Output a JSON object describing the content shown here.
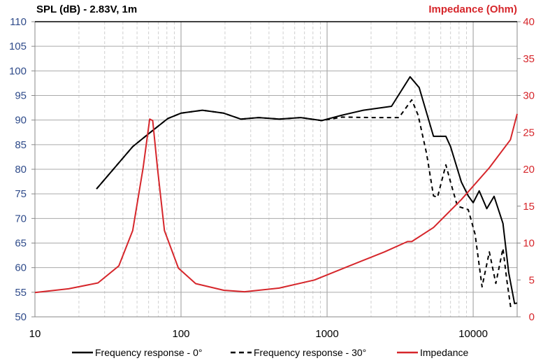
{
  "chart_data": {
    "type": "line",
    "title_left": "SPL (dB) - 2.83V, 1m",
    "title_right": "Impedance (Ohm)",
    "xscale": "log",
    "xlim": [
      10,
      20000
    ],
    "xticks": [
      10,
      100,
      1000,
      10000
    ],
    "xtick_labels": [
      "10",
      "100",
      "1000",
      "10000"
    ],
    "ylim": [
      50,
      110
    ],
    "yticks": [
      50,
      55,
      60,
      65,
      70,
      75,
      80,
      85,
      90,
      95,
      100,
      105,
      110
    ],
    "y2lim": [
      0,
      40
    ],
    "y2ticks": [
      0,
      5,
      10,
      15,
      20,
      25,
      30,
      35,
      40
    ],
    "grid": true,
    "legend_position": "bottom",
    "colors": {
      "spl_axis": "#2f4b8a",
      "impedance": "#d6262b",
      "fr": "#000000"
    },
    "series": [
      {
        "name": "Frequency response - 0°",
        "axis": "left",
        "style": "solid",
        "x": [
          26.4,
          37.5,
          46.7,
          61,
          81,
          100,
          140,
          196,
          257,
          340,
          470,
          660,
          920,
          1270,
          1770,
          2760,
          2900,
          3700,
          4270,
          5350,
          6500,
          7000,
          8300,
          9250,
          10000,
          11000,
          12400,
          13900,
          16000,
          17500,
          19200,
          20000
        ],
        "y": [
          76,
          81.3,
          84.6,
          87.4,
          90.3,
          91.4,
          92,
          91.4,
          90.2,
          90.5,
          90.2,
          90.5,
          89.9,
          91,
          92,
          92.8,
          93.8,
          98.8,
          96.6,
          86.7,
          86.7,
          84.6,
          77.4,
          74.6,
          73.2,
          75.6,
          72,
          74.5,
          69,
          59,
          52.7,
          52.8
        ]
      },
      {
        "name": "Frequency response - 30°",
        "axis": "left",
        "style": "dashed",
        "x": [
          26.4,
          37.5,
          46.7,
          61,
          81,
          100,
          140,
          196,
          257,
          340,
          470,
          660,
          920,
          1270,
          2000,
          3100,
          3800,
          4200,
          4800,
          5350,
          5700,
          6500,
          7000,
          7800,
          9250,
          10300,
          11500,
          12900,
          14300,
          16000,
          17000,
          18100
        ],
        "y": [
          76,
          81.3,
          84.6,
          87.4,
          90.3,
          91.4,
          92,
          91.4,
          90.2,
          90.5,
          90.2,
          90.5,
          89.9,
          90.6,
          90.5,
          90.5,
          94.1,
          91,
          83.2,
          74.6,
          74.3,
          80.9,
          77.4,
          72.5,
          71.8,
          66.8,
          56.1,
          63.2,
          56.8,
          63.9,
          57.5,
          51.8
        ]
      },
      {
        "name": "Impedance",
        "axis": "right",
        "style": "solid",
        "x": [
          10,
          17,
          27,
          37.5,
          46.7,
          55,
          61,
          64,
          69,
          77,
          96,
          126,
          196,
          272,
          470,
          820,
          1420,
          2470,
          3550,
          3800,
          5350,
          8300,
          12900,
          18000,
          20000
        ],
        "y": [
          3.3,
          3.8,
          4.6,
          6.9,
          11.7,
          20.2,
          26.8,
          26.6,
          20.2,
          11.7,
          6.6,
          4.5,
          3.6,
          3.4,
          3.9,
          5.0,
          6.9,
          8.8,
          10.2,
          10.2,
          12.1,
          15.9,
          20.2,
          24.0,
          27.5
        ]
      }
    ]
  }
}
